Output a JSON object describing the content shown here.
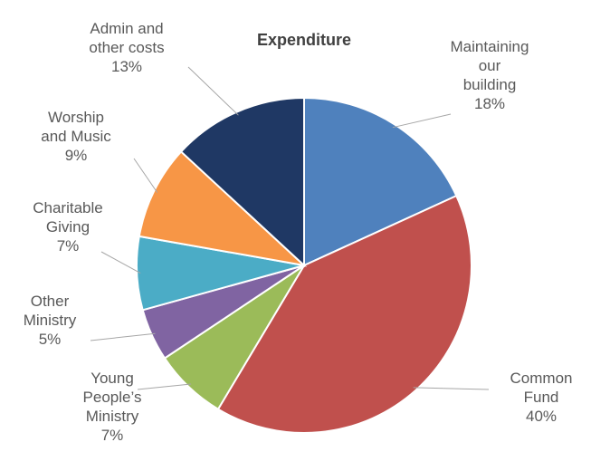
{
  "chart_data": {
    "type": "pie",
    "title": "Expenditure",
    "start_angle": 0,
    "direction": "clockwise",
    "slices": [
      {
        "label": "Maintaining our building",
        "label_lines": [
          "Maintaining",
          "our",
          "building"
        ],
        "percent_label": "18%",
        "value": 18,
        "color": "#4f81bd"
      },
      {
        "label": "Common Fund",
        "label_lines": [
          "Common",
          "Fund"
        ],
        "percent_label": "40%",
        "value": 40,
        "color": "#c0504d"
      },
      {
        "label": "Young People's Ministry",
        "label_lines": [
          "Young",
          "People’s",
          "Ministry"
        ],
        "percent_label": "7%",
        "value": 7,
        "color": "#9bbb59"
      },
      {
        "label": "Other Ministry",
        "label_lines": [
          "Other",
          "Ministry"
        ],
        "percent_label": "5%",
        "value": 5,
        "color": "#8064a2"
      },
      {
        "label": "Charitable Giving",
        "label_lines": [
          "Charitable",
          "Giving"
        ],
        "percent_label": "7%",
        "value": 7,
        "color": "#4bacc6"
      },
      {
        "label": "Worship and Music",
        "label_lines": [
          "Worship",
          "and Music"
        ],
        "percent_label": "9%",
        "value": 9,
        "color": "#f79646"
      },
      {
        "label": "Admin and other costs",
        "label_lines": [
          "Admin and",
          "other costs"
        ],
        "percent_label": "13%",
        "value": 13,
        "color": "#1f3864"
      }
    ]
  }
}
